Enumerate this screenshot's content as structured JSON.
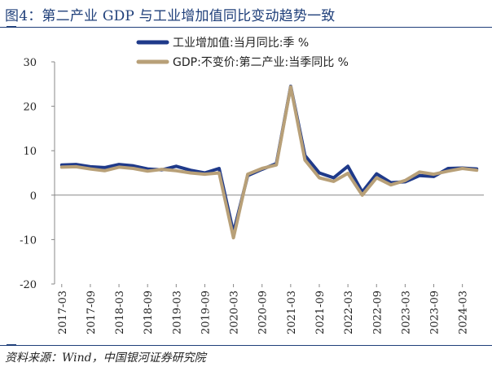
{
  "header": {
    "title": "图4：第二产业 GDP 与工业增加值同比变动趋势一致"
  },
  "footer": {
    "source": "资料来源：Wind，中国银河证券研究院"
  },
  "chart_data": {
    "type": "line",
    "title": "图4：第二产业 GDP 与工业增加值同比变动趋势一致",
    "xlabel": "",
    "ylabel": "",
    "ylim": [
      -20,
      30
    ],
    "yticks": [
      -20,
      -10,
      0,
      10,
      20,
      30
    ],
    "grid": false,
    "legend_position": "top",
    "x": [
      "2017-03",
      "2017-06",
      "2017-09",
      "2017-12",
      "2018-03",
      "2018-06",
      "2018-09",
      "2018-12",
      "2019-03",
      "2019-06",
      "2019-09",
      "2019-12",
      "2020-03",
      "2020-06",
      "2020-09",
      "2020-12",
      "2021-03",
      "2021-06",
      "2021-09",
      "2021-12",
      "2022-03",
      "2022-06",
      "2022-09",
      "2022-12",
      "2023-03",
      "2023-06",
      "2023-09",
      "2023-12",
      "2024-03",
      "2024-06"
    ],
    "xtick_labels": [
      "2017-03",
      "2017-09",
      "2018-03",
      "2018-09",
      "2019-03",
      "2019-09",
      "2020-03",
      "2020-09",
      "2021-03",
      "2021-09",
      "2022-03",
      "2022-09",
      "2023-03",
      "2023-09",
      "2024-03"
    ],
    "series": [
      {
        "name": "工业增加值:当月同比:季 %",
        "color": "#1f3a8a",
        "values": [
          6.8,
          6.9,
          6.4,
          6.2,
          6.9,
          6.6,
          5.9,
          5.7,
          6.5,
          5.6,
          5.0,
          6.0,
          -8.4,
          4.4,
          5.8,
          7.1,
          24.5,
          8.9,
          5.0,
          3.9,
          6.5,
          0.7,
          4.8,
          2.8,
          3.0,
          4.4,
          4.2,
          6.0,
          6.1,
          5.9
        ]
      },
      {
        "name": "GDP:不变价:第二产业:当季同比 %",
        "color": "#b8a078",
        "values": [
          6.3,
          6.4,
          5.9,
          5.5,
          6.3,
          6.0,
          5.4,
          5.8,
          5.5,
          5.0,
          4.7,
          5.0,
          -9.6,
          4.7,
          6.0,
          6.8,
          24.4,
          7.9,
          3.9,
          3.1,
          4.9,
          0.0,
          3.9,
          2.3,
          3.3,
          5.2,
          4.7,
          5.4,
          6.0,
          5.6
        ]
      }
    ]
  }
}
